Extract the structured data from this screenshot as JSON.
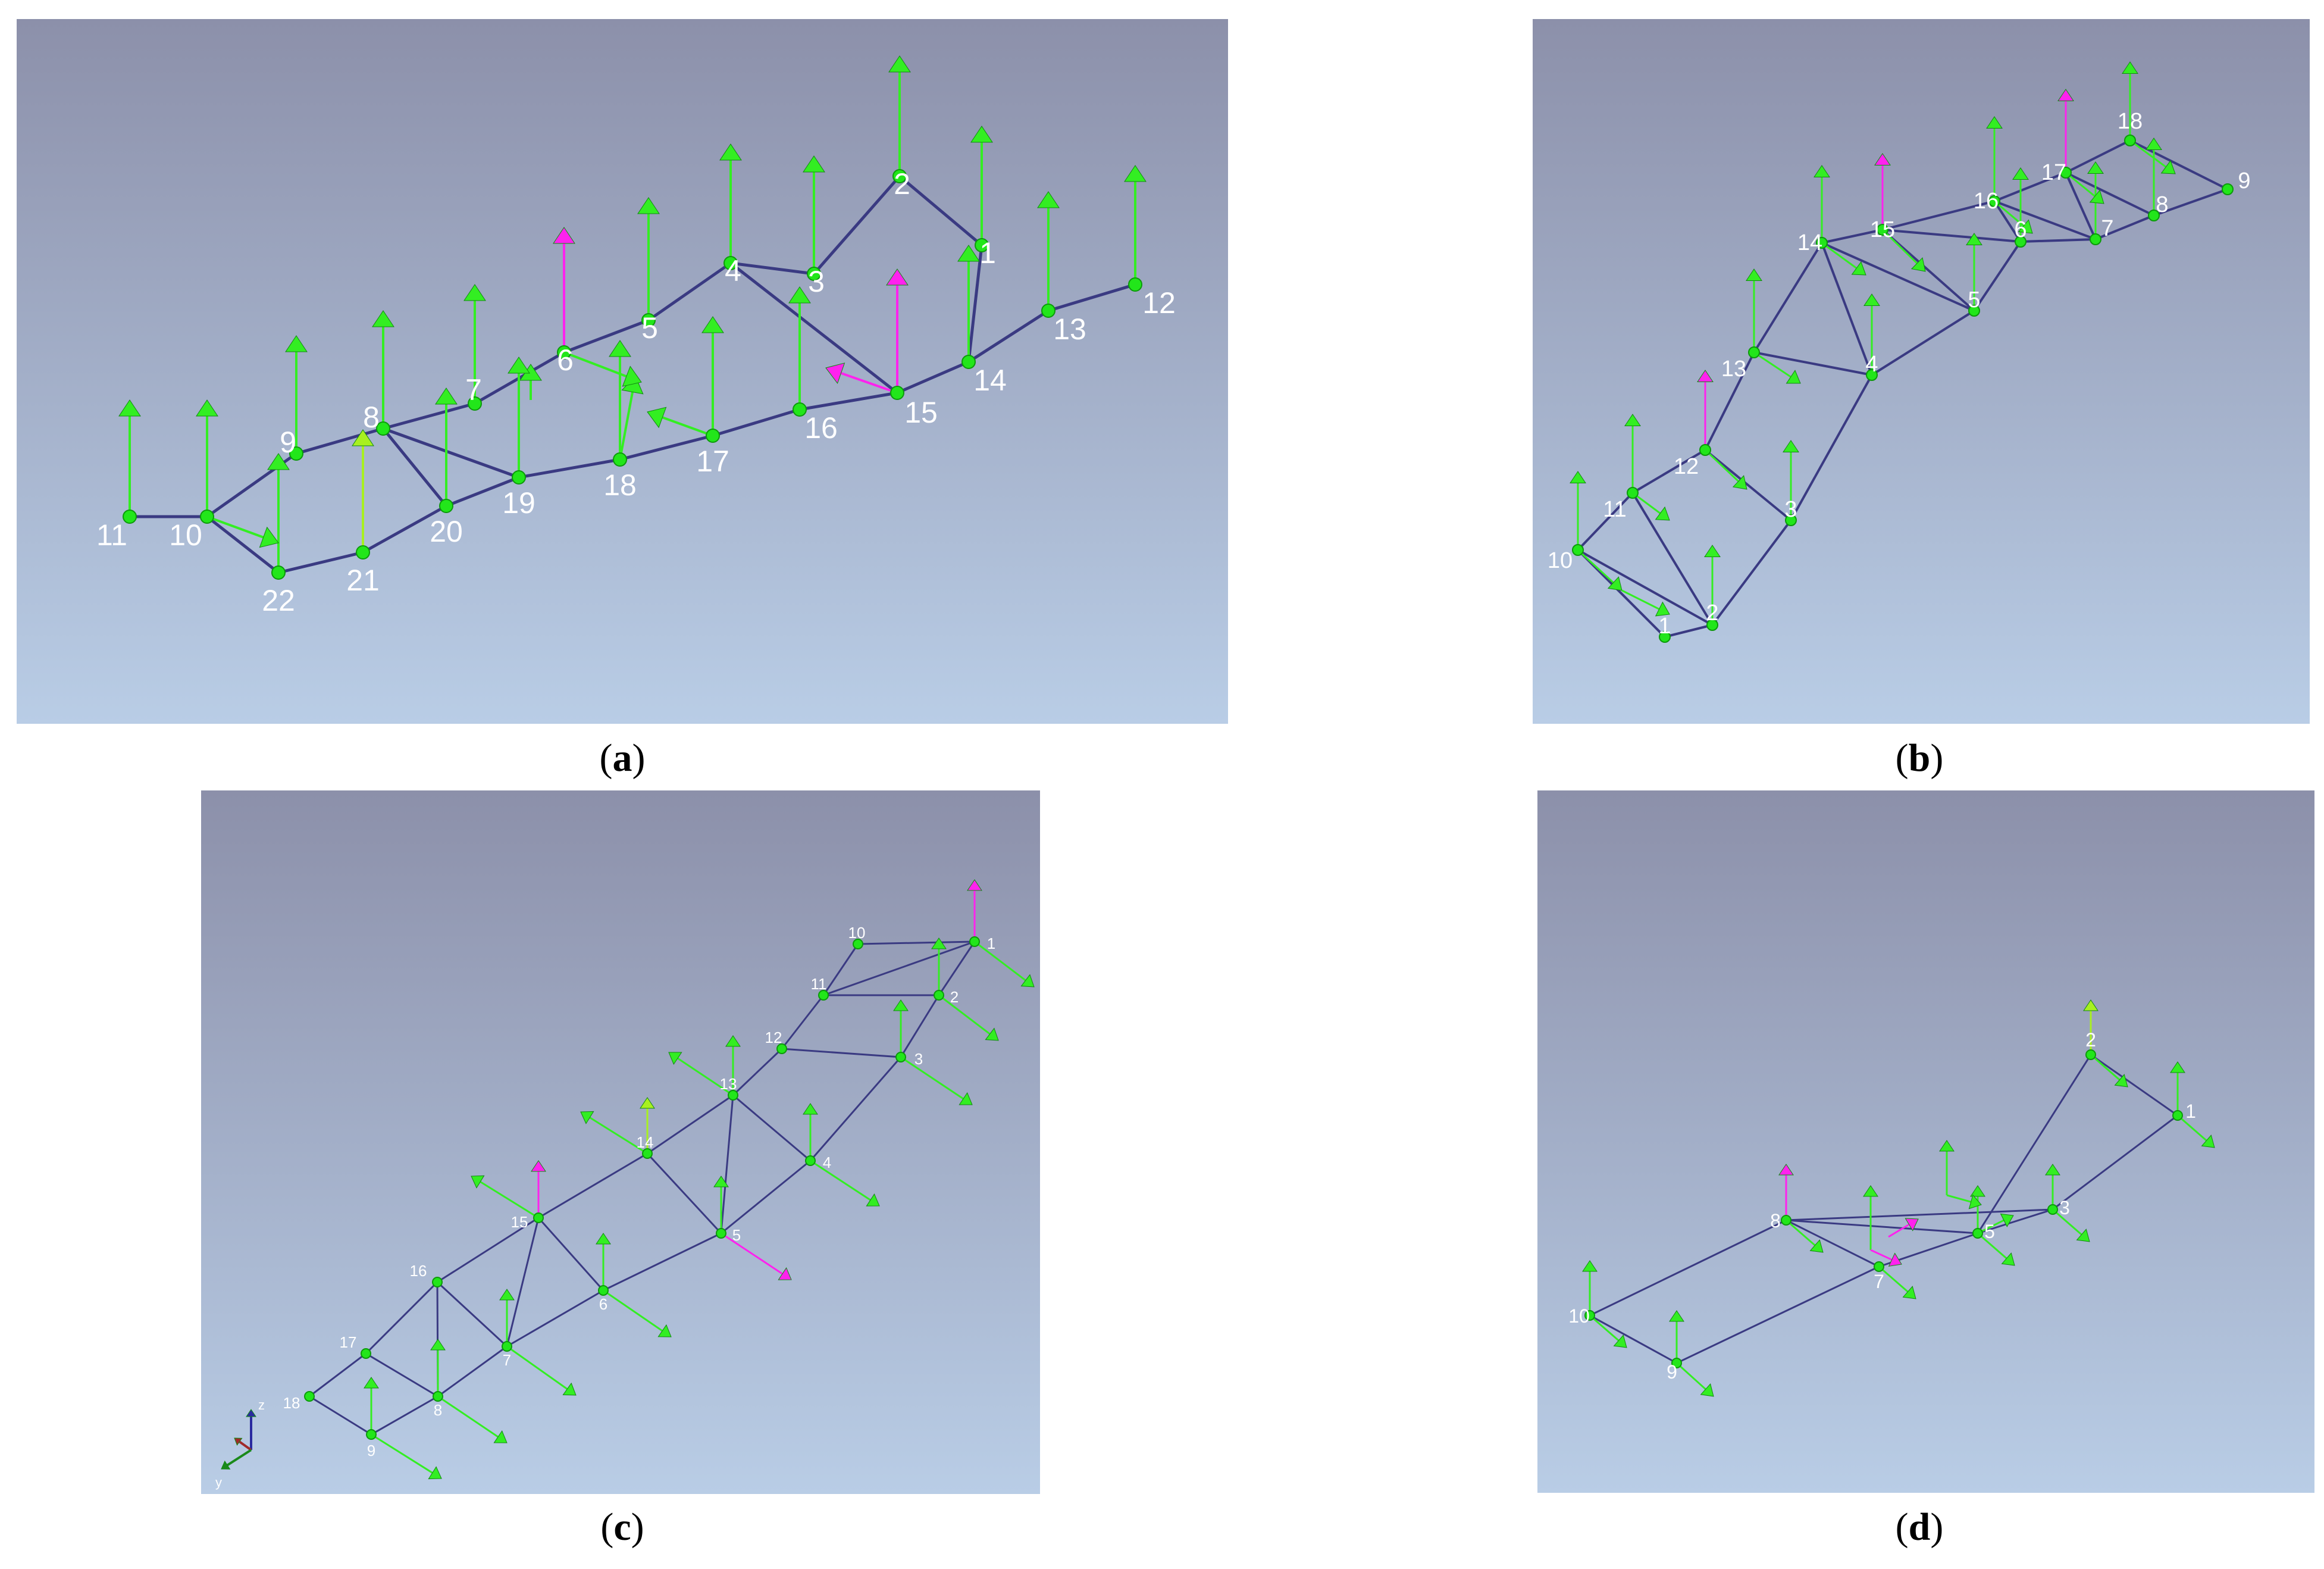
{
  "colors": {
    "background_top": "#8c90aa",
    "background_bottom": "#b9cde6",
    "edge": "#3a3a82",
    "node": "#22e61a",
    "node_stroke": "#0c9a0a",
    "arrow_green": "#33ee22",
    "arrow_lime": "#a8f020",
    "arrow_magenta": "#ff22ee",
    "label": "#ffffff"
  },
  "panels": [
    {
      "caption": "a",
      "nodes": [
        {
          "id": "n11",
          "label": "11"
        },
        {
          "id": "n10",
          "label": "10"
        },
        {
          "id": "n22",
          "label": "22"
        },
        {
          "id": "n21",
          "label": "21"
        },
        {
          "id": "n20",
          "label": "20"
        },
        {
          "id": "n19",
          "label": "19"
        },
        {
          "id": "n18",
          "label": "18"
        },
        {
          "id": "n17",
          "label": "17"
        },
        {
          "id": "n16",
          "label": "16"
        },
        {
          "id": "n15",
          "label": "15"
        },
        {
          "id": "n14",
          "label": "14"
        },
        {
          "id": "n13",
          "label": "13"
        },
        {
          "id": "n12",
          "label": "12"
        },
        {
          "id": "n9",
          "label": "9"
        },
        {
          "id": "n8",
          "label": "8"
        },
        {
          "id": "n7",
          "label": "7"
        },
        {
          "id": "n6",
          "label": "6"
        },
        {
          "id": "n5",
          "label": "5"
        },
        {
          "id": "n4",
          "label": "4"
        },
        {
          "id": "n3",
          "label": "3"
        },
        {
          "id": "n2",
          "label": "2"
        },
        {
          "id": "n1",
          "label": "1"
        }
      ]
    },
    {
      "caption": "b",
      "nodes": [
        {
          "id": "n1",
          "label": "1"
        },
        {
          "id": "n2",
          "label": "2"
        },
        {
          "id": "n3",
          "label": "3"
        },
        {
          "id": "n4",
          "label": "4"
        },
        {
          "id": "n5",
          "label": "5"
        },
        {
          "id": "n6",
          "label": "6"
        },
        {
          "id": "n7",
          "label": "7"
        },
        {
          "id": "n8",
          "label": "8"
        },
        {
          "id": "n9",
          "label": "9"
        },
        {
          "id": "n10",
          "label": "10"
        },
        {
          "id": "n11",
          "label": "11"
        },
        {
          "id": "n12",
          "label": "12"
        },
        {
          "id": "n13",
          "label": "13"
        },
        {
          "id": "n14",
          "label": "14"
        },
        {
          "id": "n15",
          "label": "15"
        },
        {
          "id": "n16",
          "label": "16"
        },
        {
          "id": "n17",
          "label": "17"
        },
        {
          "id": "n18",
          "label": "18"
        }
      ]
    },
    {
      "caption": "c",
      "axis_labels": {
        "z": "z",
        "y": "y"
      },
      "nodes": [
        {
          "id": "n1",
          "label": "1"
        },
        {
          "id": "n2",
          "label": "2"
        },
        {
          "id": "n3",
          "label": "3"
        },
        {
          "id": "n4",
          "label": "4"
        },
        {
          "id": "n5",
          "label": "5"
        },
        {
          "id": "n6",
          "label": "6"
        },
        {
          "id": "n7",
          "label": "7"
        },
        {
          "id": "n8",
          "label": "8"
        },
        {
          "id": "n9",
          "label": "9"
        },
        {
          "id": "n10",
          "label": "10"
        },
        {
          "id": "n11",
          "label": "11"
        },
        {
          "id": "n12",
          "label": "12"
        },
        {
          "id": "n13",
          "label": "13"
        },
        {
          "id": "n14",
          "label": "14"
        },
        {
          "id": "n15",
          "label": "15"
        },
        {
          "id": "n16",
          "label": "16"
        },
        {
          "id": "n17",
          "label": "17"
        },
        {
          "id": "n18",
          "label": "18"
        }
      ]
    },
    {
      "caption": "d",
      "nodes": [
        {
          "id": "n1",
          "label": "1"
        },
        {
          "id": "n2",
          "label": "2"
        },
        {
          "id": "n3",
          "label": "3"
        },
        {
          "id": "n5",
          "label": "5"
        },
        {
          "id": "n7",
          "label": "7"
        },
        {
          "id": "n8",
          "label": "8"
        },
        {
          "id": "n9",
          "label": "9"
        },
        {
          "id": "n10",
          "label": "10"
        }
      ]
    }
  ]
}
